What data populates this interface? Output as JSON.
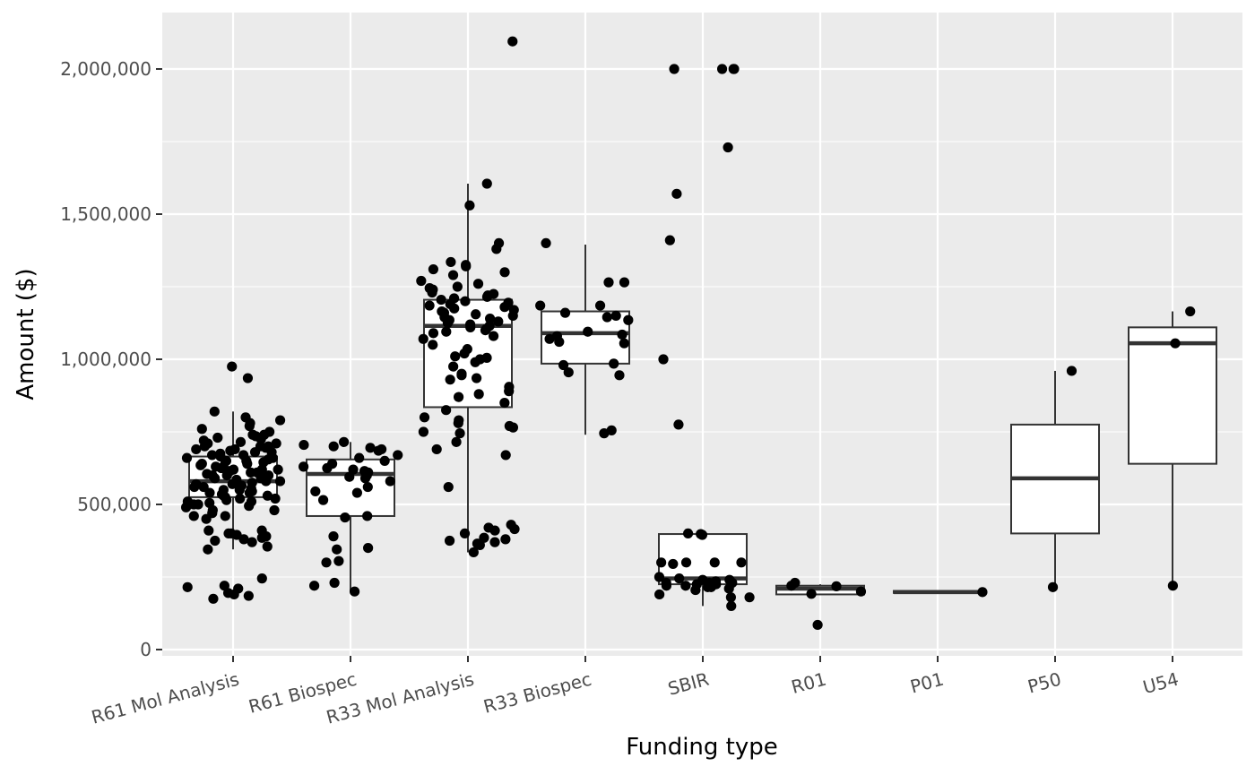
{
  "chart_data": {
    "type": "boxplot",
    "title": "",
    "xlabel": "Funding type",
    "ylabel": "Amount ($)",
    "ylim": [
      -25000,
      2200000
    ],
    "yticks": [
      0,
      500000,
      1000000,
      1500000,
      2000000
    ],
    "ytick_labels": [
      "0",
      "500,000",
      "1,000,000",
      "1,500,000",
      "2,000,000"
    ],
    "categories": [
      "R61 Mol Analysis",
      "R61 Biospec",
      "R33 Mol Analysis",
      "R33 Biospec",
      "SBIR",
      "R01",
      "P01",
      "P50",
      "U54"
    ],
    "grid": true,
    "legend": "none",
    "colors": {
      "panel": "#ebebeb",
      "grid": "#ffffff",
      "box_fill": "#ffffff",
      "box_line": "#333333",
      "point": "#000000",
      "tick": "#4d4d4d"
    },
    "boxes": [
      {
        "category": "R61 Mol Analysis",
        "whisker_low": 345000,
        "q1": 525000,
        "median": 580000,
        "q3": 665000,
        "whisker_high": 820000
      },
      {
        "category": "R61 Biospec",
        "whisker_low": 200000,
        "q1": 460000,
        "median": 605000,
        "q3": 655000,
        "whisker_high": 715000
      },
      {
        "category": "R33 Mol Analysis",
        "whisker_low": 335000,
        "q1": 835000,
        "median": 1115000,
        "q3": 1205000,
        "whisker_high": 1605000
      },
      {
        "category": "R33 Biospec",
        "whisker_low": 740000,
        "q1": 985000,
        "median": 1090000,
        "q3": 1165000,
        "whisker_high": 1395000
      },
      {
        "category": "SBIR",
        "whisker_low": 150000,
        "q1": 225000,
        "median": 245000,
        "q3": 398000,
        "whisker_high": 400000
      },
      {
        "category": "R01",
        "whisker_low": 190000,
        "q1": 190000,
        "median": 210000,
        "q3": 220000,
        "whisker_high": 225000
      },
      {
        "category": "P01",
        "whisker_low": 195000,
        "q1": 195000,
        "median": 198000,
        "q3": 202000,
        "whisker_high": 202000
      },
      {
        "category": "P50",
        "whisker_low": 215000,
        "q1": 400000,
        "median": 590000,
        "q3": 775000,
        "whisker_high": 960000
      },
      {
        "category": "U54",
        "whisker_low": 220000,
        "q1": 640000,
        "median": 1055000,
        "q3": 1110000,
        "whisker_high": 1165000
      }
    ],
    "points": [
      {
        "category": "R61 Mol Analysis",
        "values": [
          935000,
          820000,
          800000,
          790000,
          780000,
          770000,
          760000,
          750000,
          740000,
          740000,
          735000,
          730000,
          725000,
          720000,
          715000,
          710000,
          705000,
          700000,
          700000,
          695000,
          690000,
          685000,
          680000,
          675000,
          670000,
          665000,
          660000,
          655000,
          650000,
          650000,
          645000,
          640000,
          635000,
          630000,
          625000,
          620000,
          620000,
          615000,
          610000,
          605000,
          600000,
          600000,
          595000,
          590000,
          585000,
          580000,
          575000,
          570000,
          565000,
          560000,
          555000,
          550000,
          545000,
          540000,
          535000,
          530000,
          525000,
          520000,
          515000,
          510000,
          505000,
          500000,
          495000,
          490000,
          480000,
          470000,
          460000,
          450000,
          410000,
          400000,
          395000,
          390000,
          380000,
          370000,
          215000,
          210000,
          195000,
          190000,
          185000,
          175000
        ],
        "extra": [
          975000,
          710000,
          700000,
          690000,
          680000,
          670000,
          660000,
          650000,
          640000,
          630000,
          620000,
          610000,
          600000,
          590000,
          580000,
          570000,
          560000,
          550000,
          540000,
          530000,
          520000,
          510000,
          500000,
          480000,
          460000,
          410000,
          400000,
          385000,
          375000,
          355000,
          345000,
          245000,
          220000
        ]
      },
      {
        "category": "R61 Biospec",
        "values": [
          715000,
          705000,
          700000,
          695000,
          690000,
          685000,
          670000,
          660000,
          650000,
          640000,
          630000,
          625000,
          620000,
          615000,
          610000,
          600000,
          595000,
          590000,
          580000,
          560000,
          545000,
          540000,
          515000,
          460000,
          455000,
          390000,
          350000,
          345000,
          305000,
          300000,
          230000,
          220000,
          200000
        ]
      },
      {
        "category": "R33 Mol Analysis",
        "values": [
          2095000,
          1605000,
          1530000,
          1400000,
          1380000,
          1335000,
          1325000,
          1320000,
          1310000,
          1300000,
          1290000,
          1270000,
          1260000,
          1250000,
          1245000,
          1240000,
          1240000,
          1230000,
          1225000,
          1220000,
          1215000,
          1210000,
          1205000,
          1200000,
          1195000,
          1190000,
          1185000,
          1180000,
          1175000,
          1170000,
          1165000,
          1160000,
          1155000,
          1150000,
          1145000,
          1140000,
          1135000,
          1130000,
          1125000,
          1120000,
          1115000,
          1110000,
          1105000,
          1100000,
          1095000,
          1090000,
          1080000,
          1070000,
          1050000,
          1035000,
          1020000,
          1010000,
          1005000,
          1000000,
          990000,
          975000,
          950000,
          945000,
          935000,
          930000,
          905000,
          890000,
          880000,
          870000,
          850000,
          825000,
          800000,
          790000,
          780000,
          770000,
          765000,
          750000,
          745000,
          715000,
          690000,
          670000,
          560000,
          430000,
          420000,
          415000,
          410000,
          400000,
          385000,
          380000,
          375000,
          370000,
          365000,
          360000,
          335000
        ]
      },
      {
        "category": "R33 Biospec",
        "values": [
          1400000,
          1265000,
          1265000,
          1185000,
          1185000,
          1160000,
          1150000,
          1145000,
          1135000,
          1095000,
          1085000,
          1080000,
          1070000,
          1060000,
          1055000,
          985000,
          980000,
          955000,
          945000,
          755000,
          745000
        ]
      },
      {
        "category": "SBIR",
        "values": [
          2000000,
          2000000,
          2000000,
          2000000,
          1730000,
          1570000,
          1410000,
          1000000,
          775000,
          400000,
          398000,
          395000,
          300000,
          300000,
          300000,
          300000,
          295000,
          250000,
          245000,
          240000,
          240000,
          235000,
          230000,
          230000,
          230000,
          225000,
          225000,
          225000,
          220000,
          220000,
          215000,
          215000,
          210000,
          205000,
          190000,
          180000,
          180000,
          150000
        ]
      },
      {
        "category": "R01",
        "values": [
          230000,
          220000,
          218000,
          200000,
          192000,
          85000
        ]
      },
      {
        "category": "P01",
        "values": [
          198000
        ]
      },
      {
        "category": "P50",
        "values": [
          960000,
          215000
        ]
      },
      {
        "category": "U54",
        "values": [
          1165000,
          1055000,
          220000
        ]
      }
    ]
  }
}
